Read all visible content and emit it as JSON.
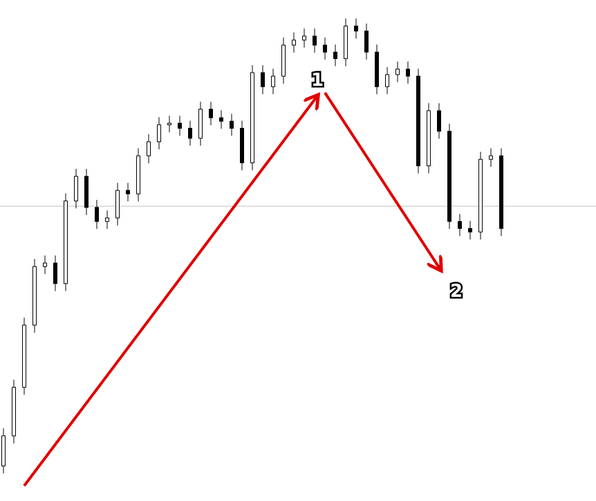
{
  "chart_data": {
    "type": "candlestick",
    "categories": [
      null,
      null,
      null,
      null,
      null,
      null,
      null,
      null,
      null,
      null,
      null,
      null,
      null,
      null,
      null,
      null,
      null,
      null,
      null,
      null,
      null,
      null,
      null,
      null,
      null,
      null,
      null,
      null,
      null,
      null,
      null,
      null,
      null,
      null,
      null,
      null,
      null,
      null,
      null,
      null,
      null,
      null,
      null,
      null,
      null,
      null,
      null,
      null,
      null
    ],
    "open": [
      7.0,
      13.0,
      22.7,
      35.1,
      46.8,
      47.5,
      43.4,
      59.9,
      64.8,
      58.6,
      55.8,
      56.5,
      62.0,
      61.3,
      68.9,
      71.7,
      75.1,
      75.4,
      74.4,
      72.4,
      78.2,
      76.5,
      75.8,
      74.4,
      67.5,
      85.5,
      82.7,
      84.8,
      91.0,
      92.0,
      92.8,
      91.0,
      89.6,
      88.3,
      94.8,
      93.8,
      89.6,
      82.7,
      85.1,
      86.2,
      84.8,
      66.9,
      77.9,
      73.8,
      55.8,
      54.4,
      53.7,
      68.2,
      68.9
    ],
    "high": [
      14.5,
      24.2,
      36.6,
      48.3,
      49.0,
      49.0,
      61.4,
      66.3,
      66.3,
      60.1,
      58.0,
      63.5,
      63.5,
      70.4,
      73.2,
      76.6,
      76.9,
      76.9,
      75.9,
      79.7,
      79.7,
      78.0,
      77.3,
      75.9,
      87.0,
      87.0,
      86.3,
      92.5,
      93.5,
      94.3,
      94.3,
      92.5,
      91.1,
      96.3,
      96.3,
      95.3,
      91.1,
      86.6,
      87.7,
      87.7,
      86.3,
      79.4,
      79.4,
      75.3,
      57.3,
      55.9,
      69.7,
      70.4,
      70.4
    ],
    "low": [
      5.5,
      11.5,
      21.2,
      33.6,
      45.3,
      41.9,
      41.9,
      58.4,
      57.1,
      54.3,
      54.3,
      55.0,
      59.8,
      59.8,
      67.4,
      70.2,
      73.6,
      72.9,
      70.9,
      70.9,
      75.0,
      74.3,
      72.9,
      66.0,
      66.0,
      81.2,
      81.2,
      83.3,
      89.5,
      90.5,
      89.5,
      88.1,
      86.8,
      86.8,
      92.3,
      88.1,
      81.2,
      81.2,
      83.6,
      83.3,
      65.4,
      65.4,
      72.3,
      54.3,
      52.9,
      52.2,
      52.2,
      66.7,
      52.9
    ],
    "close": [
      13.0,
      22.7,
      35.1,
      46.8,
      47.5,
      43.4,
      59.9,
      64.8,
      58.6,
      55.8,
      56.5,
      62.0,
      61.3,
      68.9,
      71.7,
      75.1,
      75.4,
      74.4,
      72.4,
      78.2,
      76.5,
      75.8,
      74.4,
      67.5,
      85.5,
      82.7,
      84.8,
      91.0,
      92.0,
      92.8,
      91.0,
      89.6,
      88.3,
      94.8,
      93.8,
      89.6,
      82.7,
      85.1,
      86.2,
      84.8,
      66.9,
      77.9,
      73.8,
      55.8,
      54.4,
      53.7,
      68.2,
      68.9,
      54.4
    ],
    "ylim": [
      0,
      100
    ],
    "up_color": "#ffffff",
    "down_color": "#000000",
    "wick_color": "#000000",
    "annotations": [
      "1",
      "2"
    ]
  }
}
